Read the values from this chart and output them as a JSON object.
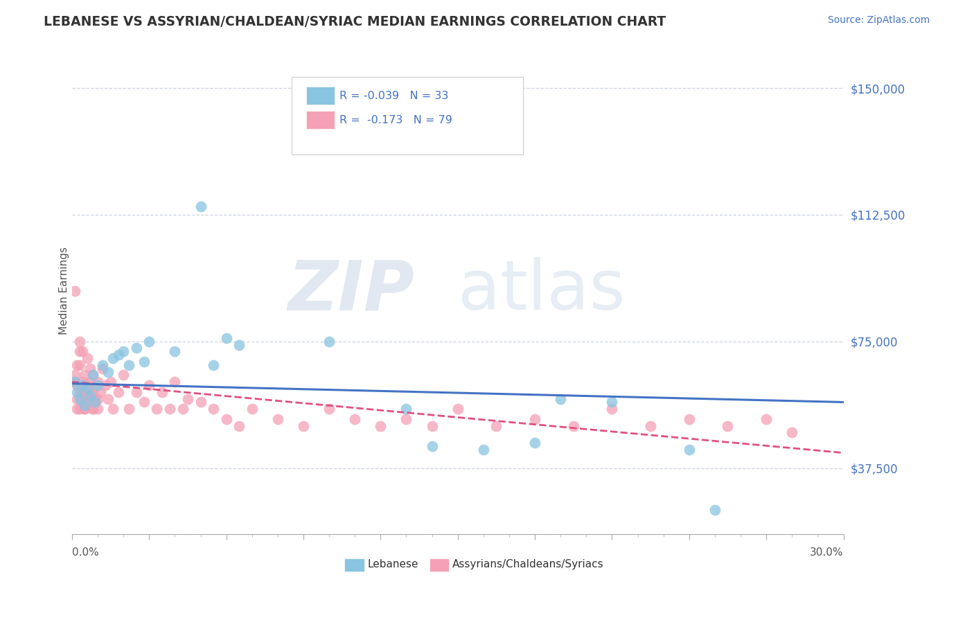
{
  "title": "LEBANESE VS ASSYRIAN/CHALDEAN/SYRIAC MEDIAN EARNINGS CORRELATION CHART",
  "source": "Source: ZipAtlas.com",
  "ylabel": "Median Earnings",
  "yticks": [
    37500,
    75000,
    112500,
    150000
  ],
  "ytick_labels": [
    "$37,500",
    "$75,000",
    "$112,500",
    "$150,000"
  ],
  "xlim": [
    0.0,
    0.3
  ],
  "ylim": [
    18000,
    162000
  ],
  "blue_color": "#89c4e1",
  "pink_color": "#f4a0b5",
  "blue_line_color": "#4472c4",
  "pink_line_color": "#e05080",
  "watermark_zip": "ZIP",
  "watermark_atlas": "atlas",
  "legend_text1": "R = -0.039   N = 33",
  "legend_text2": "R =  -0.173   N = 79",
  "blue_x": [
    0.001,
    0.002,
    0.003,
    0.004,
    0.005,
    0.006,
    0.007,
    0.008,
    0.009,
    0.01,
    0.012,
    0.014,
    0.016,
    0.018,
    0.02,
    0.022,
    0.025,
    0.028,
    0.03,
    0.04,
    0.05,
    0.055,
    0.06,
    0.065,
    0.1,
    0.13,
    0.14,
    0.16,
    0.18,
    0.19,
    0.21,
    0.24,
    0.25
  ],
  "blue_y": [
    63000,
    60000,
    58000,
    62000,
    56000,
    61000,
    59000,
    65000,
    57000,
    62000,
    68000,
    66000,
    70000,
    71000,
    72000,
    68000,
    73000,
    69000,
    75000,
    72000,
    115000,
    68000,
    76000,
    74000,
    75000,
    55000,
    44000,
    43000,
    45000,
    58000,
    57000,
    43000,
    25000
  ],
  "pink_x": [
    0.001,
    0.001,
    0.001,
    0.002,
    0.002,
    0.002,
    0.003,
    0.003,
    0.003,
    0.004,
    0.004,
    0.004,
    0.005,
    0.005,
    0.005,
    0.005,
    0.006,
    0.006,
    0.006,
    0.007,
    0.007,
    0.007,
    0.008,
    0.008,
    0.008,
    0.009,
    0.009,
    0.01,
    0.01,
    0.01,
    0.011,
    0.012,
    0.013,
    0.014,
    0.015,
    0.016,
    0.018,
    0.02,
    0.022,
    0.025,
    0.028,
    0.03,
    0.033,
    0.035,
    0.038,
    0.04,
    0.043,
    0.045,
    0.05,
    0.055,
    0.06,
    0.065,
    0.07,
    0.08,
    0.09,
    0.1,
    0.11,
    0.12,
    0.13,
    0.14,
    0.15,
    0.165,
    0.18,
    0.195,
    0.21,
    0.225,
    0.24,
    0.255,
    0.27,
    0.28,
    0.003,
    0.004,
    0.005,
    0.006,
    0.007,
    0.008,
    0.009,
    0.002,
    0.003
  ],
  "pink_y": [
    65000,
    63000,
    90000,
    58000,
    62000,
    55000,
    75000,
    60000,
    68000,
    57000,
    63000,
    72000,
    60000,
    65000,
    55000,
    58000,
    62000,
    56000,
    70000,
    63000,
    58000,
    67000,
    60000,
    65000,
    55000,
    62000,
    57000,
    63000,
    58000,
    55000,
    60000,
    67000,
    62000,
    58000,
    63000,
    55000,
    60000,
    65000,
    55000,
    60000,
    57000,
    62000,
    55000,
    60000,
    55000,
    63000,
    55000,
    58000,
    57000,
    55000,
    52000,
    50000,
    55000,
    52000,
    50000,
    55000,
    52000,
    50000,
    52000,
    50000,
    55000,
    50000,
    52000,
    50000,
    55000,
    50000,
    52000,
    50000,
    52000,
    48000,
    55000,
    60000,
    55000,
    58000,
    60000,
    55000,
    58000,
    68000,
    72000
  ]
}
